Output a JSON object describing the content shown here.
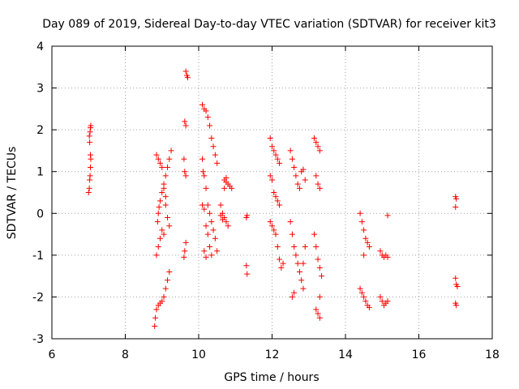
{
  "chart_data": {
    "type": "scatter",
    "title": "Day 089 of 2019, Sidereal Day-to-day VTEC variation (SDTVAR) for receiver kit3",
    "xlabel": "GPS time / hours",
    "ylabel": "SDTVAR / TECUs",
    "xlim": [
      6,
      18
    ],
    "ylim": [
      -3,
      4
    ],
    "xticks": [
      6,
      8,
      10,
      12,
      14,
      16,
      18
    ],
    "yticks": [
      -3,
      -2,
      -1,
      0,
      1,
      2,
      3,
      4
    ],
    "grid": true,
    "marker": "+",
    "marker_color": "#ff0000",
    "series": [
      {
        "name": "SDTVAR",
        "points": [
          [
            7.0,
            0.5
          ],
          [
            7.02,
            0.6
          ],
          [
            7.03,
            0.8
          ],
          [
            7.04,
            0.9
          ],
          [
            7.05,
            1.1
          ],
          [
            7.06,
            1.3
          ],
          [
            7.05,
            1.4
          ],
          [
            7.03,
            1.7
          ],
          [
            7.02,
            1.85
          ],
          [
            7.04,
            1.95
          ],
          [
            7.05,
            2.05
          ],
          [
            7.06,
            2.1
          ],
          [
            8.8,
            -2.7
          ],
          [
            8.82,
            -2.5
          ],
          [
            8.85,
            -2.3
          ],
          [
            8.9,
            -2.2
          ],
          [
            8.95,
            -2.15
          ],
          [
            9.0,
            -2.1
          ],
          [
            9.05,
            -2.0
          ],
          [
            9.1,
            -1.8
          ],
          [
            9.15,
            -1.6
          ],
          [
            9.2,
            -1.4
          ],
          [
            8.85,
            -1.0
          ],
          [
            8.9,
            -0.8
          ],
          [
            8.95,
            -0.6
          ],
          [
            9.0,
            -0.4
          ],
          [
            8.88,
            -0.2
          ],
          [
            8.9,
            0.0
          ],
          [
            8.92,
            0.15
          ],
          [
            8.95,
            0.3
          ],
          [
            9.0,
            0.5
          ],
          [
            9.05,
            0.7
          ],
          [
            9.1,
            0.9
          ],
          [
            9.15,
            1.1
          ],
          [
            9.2,
            1.3
          ],
          [
            9.25,
            1.5
          ],
          [
            8.85,
            1.4
          ],
          [
            8.9,
            1.3
          ],
          [
            8.95,
            1.2
          ],
          [
            9.0,
            1.1
          ],
          [
            9.05,
            0.6
          ],
          [
            9.1,
            0.2
          ],
          [
            9.15,
            -0.1
          ],
          [
            9.2,
            -0.3
          ],
          [
            9.05,
            -0.5
          ],
          [
            9.1,
            0.4
          ],
          [
            9.65,
            3.4
          ],
          [
            9.68,
            3.3
          ],
          [
            9.7,
            3.25
          ],
          [
            9.62,
            2.2
          ],
          [
            9.65,
            2.1
          ],
          [
            9.6,
            1.3
          ],
          [
            9.62,
            1.0
          ],
          [
            9.65,
            0.9
          ],
          [
            9.65,
            -0.7
          ],
          [
            9.62,
            -0.9
          ],
          [
            9.6,
            -1.05
          ],
          [
            10.1,
            2.6
          ],
          [
            10.15,
            2.5
          ],
          [
            10.2,
            2.45
          ],
          [
            10.25,
            2.3
          ],
          [
            10.3,
            2.1
          ],
          [
            10.35,
            1.8
          ],
          [
            10.4,
            1.6
          ],
          [
            10.45,
            1.4
          ],
          [
            10.5,
            1.2
          ],
          [
            10.1,
            1.3
          ],
          [
            10.12,
            1.0
          ],
          [
            10.15,
            0.9
          ],
          [
            10.2,
            0.6
          ],
          [
            10.25,
            0.2
          ],
          [
            10.3,
            0.0
          ],
          [
            10.35,
            -0.2
          ],
          [
            10.4,
            -0.4
          ],
          [
            10.45,
            -0.6
          ],
          [
            10.5,
            -0.9
          ],
          [
            10.1,
            0.2
          ],
          [
            10.15,
            0.1
          ],
          [
            10.2,
            -0.3
          ],
          [
            10.25,
            -0.5
          ],
          [
            10.3,
            -0.8
          ],
          [
            10.35,
            -1.0
          ],
          [
            10.15,
            -0.9
          ],
          [
            10.2,
            -1.05
          ],
          [
            10.6,
            0.2
          ],
          [
            10.65,
            0.0
          ],
          [
            10.7,
            -0.1
          ],
          [
            10.75,
            -0.2
          ],
          [
            10.8,
            -0.3
          ],
          [
            10.6,
            -0.05
          ],
          [
            10.65,
            -0.15
          ],
          [
            10.7,
            0.8
          ],
          [
            10.75,
            0.75
          ],
          [
            10.8,
            0.7
          ],
          [
            10.85,
            0.65
          ],
          [
            10.9,
            0.6
          ],
          [
            10.7,
            0.6
          ],
          [
            10.75,
            0.85
          ],
          [
            11.3,
            -0.1
          ],
          [
            11.32,
            -0.05
          ],
          [
            11.3,
            -1.25
          ],
          [
            11.32,
            -1.45
          ],
          [
            11.95,
            1.8
          ],
          [
            12.0,
            1.6
          ],
          [
            12.05,
            1.5
          ],
          [
            12.1,
            1.4
          ],
          [
            12.15,
            1.3
          ],
          [
            12.2,
            1.2
          ],
          [
            11.95,
            0.9
          ],
          [
            12.0,
            0.8
          ],
          [
            12.05,
            0.5
          ],
          [
            12.1,
            0.4
          ],
          [
            12.15,
            0.3
          ],
          [
            12.2,
            0.2
          ],
          [
            11.95,
            -0.2
          ],
          [
            12.0,
            -0.3
          ],
          [
            12.05,
            -0.4
          ],
          [
            12.1,
            -0.5
          ],
          [
            12.15,
            -0.8
          ],
          [
            12.2,
            -1.1
          ],
          [
            12.25,
            -1.3
          ],
          [
            12.3,
            -1.2
          ],
          [
            12.5,
            1.5
          ],
          [
            12.55,
            1.3
          ],
          [
            12.6,
            1.1
          ],
          [
            12.65,
            0.9
          ],
          [
            12.7,
            0.7
          ],
          [
            12.75,
            0.6
          ],
          [
            12.8,
            1.0
          ],
          [
            12.85,
            1.05
          ],
          [
            12.9,
            0.8
          ],
          [
            12.5,
            -0.2
          ],
          [
            12.55,
            -0.5
          ],
          [
            12.6,
            -0.8
          ],
          [
            12.65,
            -1.0
          ],
          [
            12.7,
            -1.2
          ],
          [
            12.75,
            -1.4
          ],
          [
            12.8,
            -1.6
          ],
          [
            12.85,
            -1.8
          ],
          [
            12.6,
            -1.9
          ],
          [
            12.55,
            -2.0
          ],
          [
            12.9,
            -0.8
          ],
          [
            12.85,
            -1.2
          ],
          [
            13.15,
            1.8
          ],
          [
            13.2,
            1.7
          ],
          [
            13.25,
            1.6
          ],
          [
            13.3,
            1.5
          ],
          [
            13.2,
            0.9
          ],
          [
            13.25,
            0.7
          ],
          [
            13.3,
            0.6
          ],
          [
            13.15,
            -0.5
          ],
          [
            13.2,
            -0.8
          ],
          [
            13.25,
            -1.1
          ],
          [
            13.3,
            -1.3
          ],
          [
            13.35,
            -1.5
          ],
          [
            13.3,
            -2.0
          ],
          [
            13.2,
            -2.3
          ],
          [
            13.25,
            -2.4
          ],
          [
            13.3,
            -2.5
          ],
          [
            14.4,
            0.0
          ],
          [
            14.45,
            -0.2
          ],
          [
            14.5,
            -0.4
          ],
          [
            14.55,
            -0.6
          ],
          [
            14.6,
            -0.7
          ],
          [
            14.65,
            -0.8
          ],
          [
            14.5,
            -1.0
          ],
          [
            14.4,
            -1.8
          ],
          [
            14.45,
            -1.9
          ],
          [
            14.5,
            -2.0
          ],
          [
            14.55,
            -2.1
          ],
          [
            14.6,
            -2.2
          ],
          [
            14.65,
            -2.25
          ],
          [
            14.95,
            -0.9
          ],
          [
            15.0,
            -1.0
          ],
          [
            15.05,
            -1.05
          ],
          [
            15.1,
            -1.0
          ],
          [
            15.15,
            -1.05
          ],
          [
            15.15,
            -0.05
          ],
          [
            14.95,
            -2.0
          ],
          [
            15.0,
            -2.1
          ],
          [
            15.05,
            -2.2
          ],
          [
            15.1,
            -2.15
          ],
          [
            15.15,
            -2.1
          ],
          [
            17.0,
            0.4
          ],
          [
            17.02,
            0.35
          ],
          [
            17.0,
            0.15
          ],
          [
            17.0,
            -1.55
          ],
          [
            17.02,
            -1.7
          ],
          [
            17.05,
            -1.75
          ],
          [
            17.0,
            -2.15
          ],
          [
            17.02,
            -2.2
          ]
        ]
      }
    ]
  }
}
